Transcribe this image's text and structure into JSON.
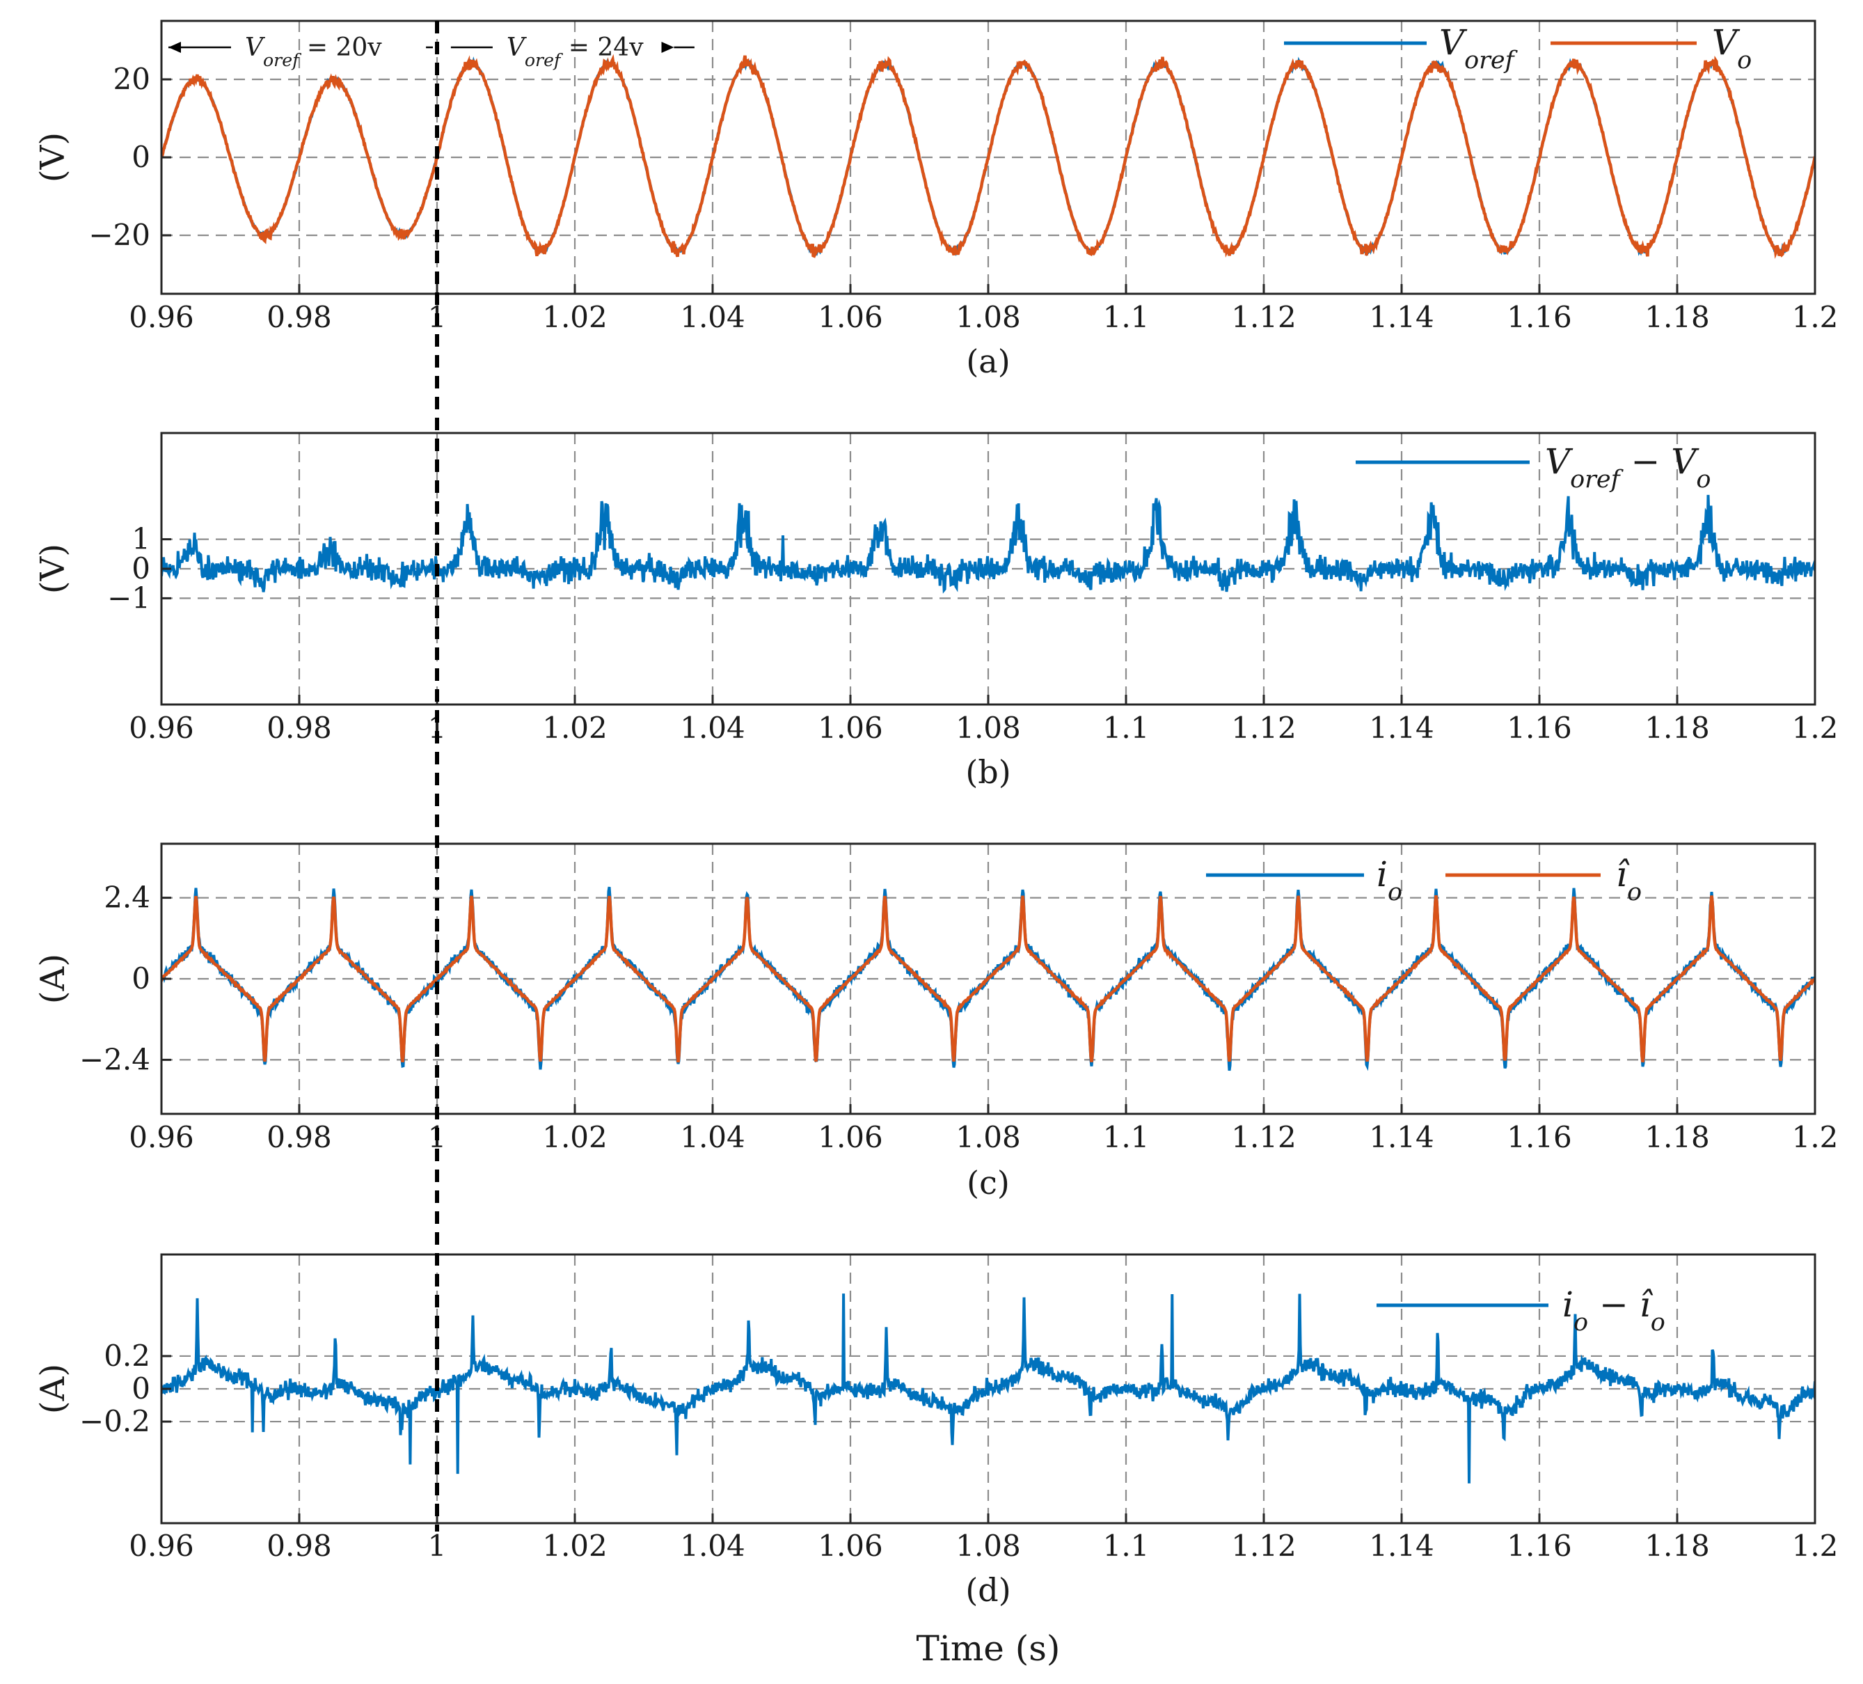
{
  "chart_data": [
    {
      "id": "a",
      "type": "line",
      "caption": "(a)",
      "ylabel": "(V)",
      "xlim": [
        0.96,
        1.2
      ],
      "ylim": [
        -35,
        35
      ],
      "yticks": [
        -20,
        0,
        20
      ],
      "ytick_labels": [
        "−20",
        "0",
        "20"
      ],
      "xticks": [
        0.96,
        0.98,
        1,
        1.02,
        1.04,
        1.06,
        1.08,
        1.1,
        1.12,
        1.14,
        1.16,
        1.18,
        1.2
      ],
      "xtick_labels": [
        "0.96",
        "0.98",
        "1",
        "1.02",
        "1.04",
        "1.06",
        "1.08",
        "1.1",
        "1.12",
        "1.14",
        "1.16",
        "1.18",
        "1.2"
      ],
      "grid": true,
      "legend_position": "top-right",
      "signal": {
        "kind": "sine",
        "frequency_hz": 50,
        "amplitude_before": 20,
        "amplitude_after": 24,
        "step_time": 1.0
      },
      "series": [
        {
          "name": "V_oref",
          "label": "V",
          "sub": "oref",
          "color": "#0072BD",
          "noise": 0.25
        },
        {
          "name": "V_o",
          "label": "V",
          "sub": "o",
          "color": "#D95319",
          "noise": 0.6
        }
      ],
      "annotations": [
        {
          "text": "V",
          "sub": "oref",
          "value": " = 20v",
          "from": 0.96,
          "to": 0.999,
          "direction": "left"
        },
        {
          "text": "V",
          "sub": "oref",
          "value": " = 24v",
          "from": 1.001,
          "to": 1.035,
          "direction": "right"
        }
      ]
    },
    {
      "id": "b",
      "type": "line",
      "caption": "(b)",
      "ylabel": "(V)",
      "xlim": [
        0.96,
        1.2
      ],
      "ylim": [
        -4.6,
        4.6
      ],
      "yticks": [
        -1,
        0,
        1
      ],
      "ytick_labels": [
        "−1",
        "0",
        "1"
      ],
      "xticks": [
        0.96,
        0.98,
        1,
        1.02,
        1.04,
        1.06,
        1.08,
        1.1,
        1.12,
        1.14,
        1.16,
        1.18,
        1.2
      ],
      "xtick_labels": [
        "0.96",
        "0.98",
        "1",
        "1.02",
        "1.04",
        "1.06",
        "1.08",
        "1.1",
        "1.12",
        "1.14",
        "1.16",
        "1.18",
        "1.2"
      ],
      "grid": true,
      "legend_position": "top-right",
      "signal": {
        "kind": "error",
        "noise": 0.28,
        "peak_before": 0.8,
        "peak_after": 1.6,
        "dip": 0.6,
        "step_time": 1.0
      },
      "series": [
        {
          "name": "V_oref - V_o",
          "label": "V",
          "sub": "oref",
          "tail": " − V",
          "tail_sub": "o",
          "color": "#0072BD"
        }
      ]
    },
    {
      "id": "c",
      "type": "line",
      "caption": "(c)",
      "ylabel": "(A)",
      "xlim": [
        0.96,
        1.2
      ],
      "ylim": [
        -4,
        4
      ],
      "yticks": [
        -2.4,
        0,
        2.4
      ],
      "ytick_labels": [
        "−2.4",
        "0",
        "2.4"
      ],
      "xticks": [
        0.96,
        0.98,
        1,
        1.02,
        1.04,
        1.06,
        1.08,
        1.1,
        1.12,
        1.14,
        1.16,
        1.18,
        1.2
      ],
      "xtick_labels": [
        "0.96",
        "0.98",
        "1",
        "1.02",
        "1.04",
        "1.06",
        "1.08",
        "1.1",
        "1.12",
        "1.14",
        "1.16",
        "1.18",
        "1.2"
      ],
      "grid": true,
      "legend_position": "top-right",
      "signal": {
        "kind": "current",
        "frequency_hz": 50,
        "peak": 2.45,
        "shoulder": 1.0
      },
      "series": [
        {
          "name": "i_o",
          "label": "i",
          "sub": "o",
          "color": "#0072BD",
          "noise": 0.1,
          "gain": 1.07
        },
        {
          "name": "i_o_hat",
          "label": "î",
          "sub": "o",
          "color": "#D95319",
          "noise": 0.02,
          "gain": 1.0
        }
      ]
    },
    {
      "id": "d",
      "type": "line",
      "caption": "(d)",
      "ylabel": "(A)",
      "xlabel": "Time (s)",
      "xlim": [
        0.96,
        1.2
      ],
      "ylim": [
        -0.82,
        0.82
      ],
      "yticks": [
        -0.2,
        0,
        0.2
      ],
      "ytick_labels": [
        "−0.2",
        "0",
        "0.2"
      ],
      "xticks": [
        0.96,
        0.98,
        1,
        1.02,
        1.04,
        1.06,
        1.08,
        1.1,
        1.12,
        1.14,
        1.16,
        1.18,
        1.2
      ],
      "xtick_labels": [
        "0.96",
        "0.98",
        "1",
        "1.02",
        "1.04",
        "1.06",
        "1.08",
        "1.1",
        "1.12",
        "1.14",
        "1.16",
        "1.18",
        "1.2"
      ],
      "grid": true,
      "legend_position": "top-right",
      "signal": {
        "kind": "current_error",
        "noise": 0.035,
        "spike": 0.5,
        "dip": 0.3
      },
      "series": [
        {
          "name": "i_o - i_o_hat",
          "label": "i",
          "sub": "o",
          "tail": " − î",
          "tail_sub": "o",
          "color": "#0072BD"
        }
      ]
    }
  ],
  "marker": {
    "x": 1.0,
    "style": "dashed",
    "color": "#000000"
  }
}
